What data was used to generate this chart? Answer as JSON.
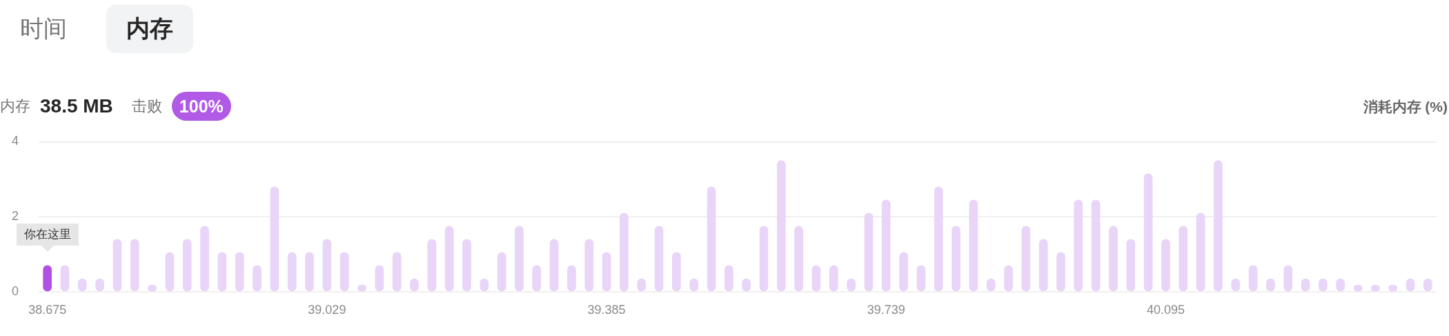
{
  "chart_data": {
    "type": "bar",
    "annotations": [
      "时间",
      "内存",
      "内存",
      "38.5 MB",
      "击败",
      "100%",
      {
        "text": "你在这里",
        "x": "38.675",
        "y": 0.7
      }
    ],
    "ylabel": "消耗内存 (%)",
    "categories": [
      "38.675",
      null,
      null,
      null,
      null,
      null,
      null,
      null,
      null,
      null,
      null,
      null,
      null,
      null,
      null,
      null,
      "39.029",
      null,
      null,
      null,
      null,
      null,
      null,
      null,
      null,
      null,
      null,
      null,
      null,
      null,
      null,
      null,
      "39.385",
      null,
      null,
      null,
      null,
      null,
      null,
      null,
      null,
      null,
      null,
      null,
      null,
      null,
      null,
      null,
      "39.739",
      null,
      null,
      null,
      null,
      null,
      null,
      null,
      null,
      null,
      null,
      null,
      null,
      null,
      null,
      null,
      "40.095",
      null,
      null,
      null,
      null,
      null,
      null,
      null,
      null,
      null,
      null,
      null,
      null,
      null,
      null,
      null
    ],
    "values": [
      0.7,
      0.7,
      0.35,
      0.35,
      1.4,
      1.4,
      0.18,
      1.05,
      1.4,
      1.75,
      1.05,
      1.05,
      0.7,
      2.8,
      1.05,
      1.05,
      1.4,
      1.05,
      0.18,
      0.7,
      1.05,
      0.35,
      1.4,
      1.75,
      1.4,
      0.35,
      1.05,
      1.75,
      0.7,
      1.4,
      0.7,
      1.4,
      1.05,
      2.1,
      0.35,
      1.75,
      1.05,
      0.35,
      2.8,
      0.7,
      0.35,
      1.75,
      3.5,
      1.75,
      0.7,
      0.7,
      0.35,
      2.1,
      2.45,
      1.05,
      0.7,
      2.8,
      1.75,
      2.45,
      0.35,
      0.7,
      1.75,
      1.4,
      1.05,
      2.45,
      2.45,
      1.75,
      1.4,
      3.15,
      1.4,
      1.75,
      2.1,
      3.5,
      0.35,
      0.7,
      0.35,
      0.7,
      0.35,
      0.35,
      0.35,
      0.18,
      0.18,
      0.18,
      0.35,
      0.35
    ],
    "colors": [
      "#b150e2",
      "#e9d5f7",
      "#e9d5f7",
      "#e9d5f7",
      "#e9d5f7",
      "#e9d5f7",
      "#e9d5f7",
      "#e9d5f7",
      "#e9d5f7",
      "#e9d5f7",
      "#e9d5f7",
      "#e9d5f7",
      "#e9d5f7",
      "#e9d5f7",
      "#e9d5f7",
      "#e9d5f7",
      "#e9d5f7",
      "#e9d5f7",
      "#e9d5f7",
      "#e9d5f7",
      "#e9d5f7",
      "#e9d5f7",
      "#e9d5f7",
      "#e9d5f7",
      "#e9d5f7",
      "#e9d5f7",
      "#e9d5f7",
      "#e9d5f7",
      "#e9d5f7",
      "#e9d5f7",
      "#e9d5f7",
      "#e9d5f7",
      "#e9d5f7",
      "#e9d5f7",
      "#e9d5f7",
      "#e9d5f7",
      "#e9d5f7",
      "#e9d5f7",
      "#e9d5f7",
      "#e9d5f7",
      "#e9d5f7",
      "#e9d5f7",
      "#e9d5f7",
      "#e9d5f7",
      "#e9d5f7",
      "#e9d5f7",
      "#e9d5f7",
      "#e9d5f7",
      "#e9d5f7",
      "#e9d5f7",
      "#e9d5f7",
      "#e9d5f7",
      "#e9d5f7",
      "#e9d5f7",
      "#e9d5f7",
      "#e9d5f7",
      "#e9d5f7",
      "#e9d5f7",
      "#e9d5f7",
      "#e9d5f7",
      "#e9d5f7",
      "#e9d5f7",
      "#e9d5f7",
      "#e9d5f7",
      "#e9d5f7",
      "#e9d5f7",
      "#e9d5f7",
      "#e9d5f7",
      "#e9d5f7",
      "#e9d5f7",
      "#e9d5f7",
      "#e9d5f7",
      "#e9d5f7",
      "#e9d5f7",
      "#e9d5f7",
      "#e9d5f7",
      "#e9d5f7",
      "#e9d5f7",
      "#e9d5f7",
      "#e9d5f7"
    ],
    "ylim": [
      0,
      4
    ],
    "yticks": [
      0,
      2,
      4
    ],
    "grid": "y"
  }
}
